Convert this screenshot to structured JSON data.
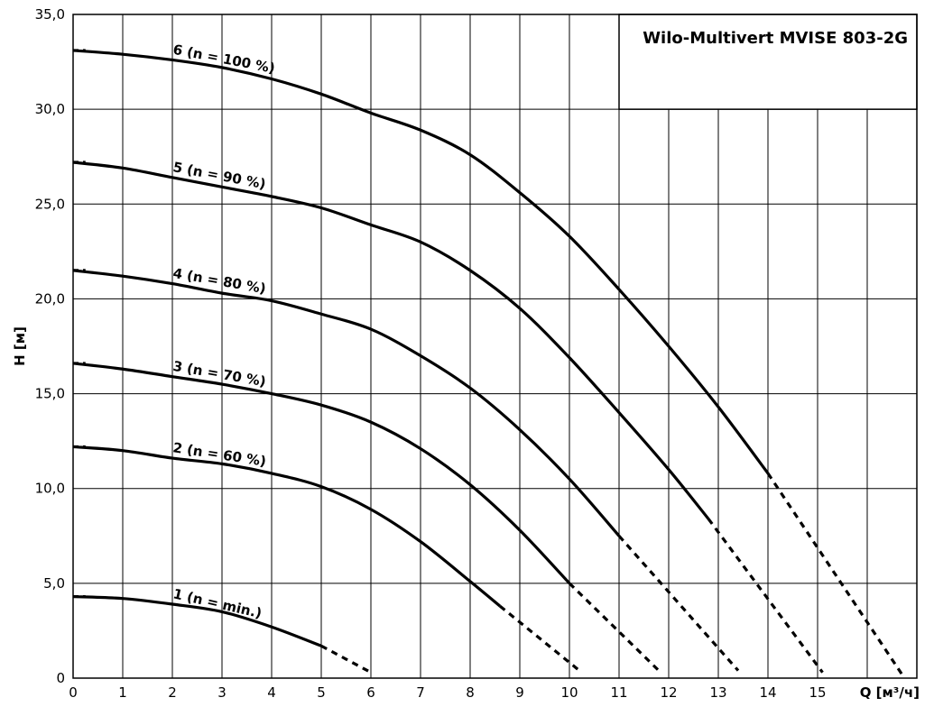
{
  "chart_data": {
    "type": "line",
    "title": "Wilo-Multivert MVISE 803-2G",
    "xlabel": "Q [м³/ч]",
    "ylabel": "H [м]",
    "xlim": [
      0,
      17
    ],
    "ylim": [
      0,
      35
    ],
    "x_ticks": [
      "0",
      "1",
      "2",
      "3",
      "4",
      "5",
      "6",
      "7",
      "8",
      "9",
      "10",
      "11",
      "12",
      "13",
      "14",
      "15"
    ],
    "y_ticks": [
      "0",
      "5,0",
      "10,0",
      "15,0",
      "20,0",
      "25,0",
      "30,0",
      "35,0"
    ],
    "grid": true,
    "series": [
      {
        "name": "1 (n = min.)",
        "solid": [
          [
            0,
            4.3
          ],
          [
            1,
            4.2
          ],
          [
            2,
            3.9
          ],
          [
            3,
            3.5
          ],
          [
            4,
            2.7
          ],
          [
            5,
            1.7
          ]
        ],
        "dashed": [
          [
            5,
            1.7
          ],
          [
            6,
            0.3
          ]
        ]
      },
      {
        "name": "2 (n = 60 %)",
        "solid": [
          [
            0,
            12.2
          ],
          [
            1,
            12.0
          ],
          [
            2,
            11.6
          ],
          [
            3,
            11.3
          ],
          [
            4,
            10.8
          ],
          [
            5,
            10.1
          ],
          [
            6,
            8.9
          ],
          [
            7,
            7.2
          ],
          [
            8,
            5.1
          ],
          [
            8.6,
            3.8
          ]
        ],
        "dashed": [
          [
            8.6,
            3.8
          ],
          [
            10.2,
            0.4
          ]
        ]
      },
      {
        "name": "3 (n = 70 %)",
        "solid": [
          [
            0,
            16.6
          ],
          [
            1,
            16.3
          ],
          [
            2,
            15.9
          ],
          [
            3,
            15.5
          ],
          [
            4,
            15.0
          ],
          [
            5,
            14.4
          ],
          [
            6,
            13.5
          ],
          [
            7,
            12.1
          ],
          [
            8,
            10.2
          ],
          [
            9,
            7.8
          ],
          [
            10,
            5.0
          ]
        ],
        "dashed": [
          [
            10,
            5.0
          ],
          [
            11.8,
            0.4
          ]
        ]
      },
      {
        "name": "4 (n = 80 %)",
        "solid": [
          [
            0,
            21.5
          ],
          [
            1,
            21.2
          ],
          [
            2,
            20.8
          ],
          [
            3,
            20.3
          ],
          [
            4,
            19.9
          ],
          [
            5,
            19.2
          ],
          [
            6,
            18.4
          ],
          [
            7,
            17.0
          ],
          [
            8,
            15.3
          ],
          [
            9,
            13.1
          ],
          [
            10,
            10.5
          ],
          [
            11,
            7.5
          ]
        ],
        "dashed": [
          [
            11,
            7.5
          ],
          [
            13.4,
            0.4
          ]
        ]
      },
      {
        "name": "5 (n = 90 %)",
        "solid": [
          [
            0,
            27.2
          ],
          [
            1,
            26.9
          ],
          [
            2,
            26.4
          ],
          [
            3,
            25.9
          ],
          [
            4,
            25.4
          ],
          [
            5,
            24.8
          ],
          [
            6,
            23.9
          ],
          [
            7,
            23.0
          ],
          [
            8,
            21.5
          ],
          [
            9,
            19.5
          ],
          [
            10,
            16.9
          ],
          [
            11,
            14.0
          ],
          [
            12,
            11.0
          ],
          [
            12.8,
            8.4
          ]
        ],
        "dashed": [
          [
            12.8,
            8.4
          ],
          [
            15.1,
            0.3
          ]
        ]
      },
      {
        "name": "6 (n = 100 %)",
        "solid": [
          [
            0,
            33.1
          ],
          [
            1,
            32.9
          ],
          [
            2,
            32.6
          ],
          [
            3,
            32.2
          ],
          [
            4,
            31.6
          ],
          [
            5,
            30.8
          ],
          [
            6,
            29.8
          ],
          [
            7,
            28.9
          ],
          [
            8,
            27.6
          ],
          [
            9,
            25.6
          ],
          [
            10,
            23.3
          ],
          [
            11,
            20.5
          ],
          [
            12,
            17.5
          ],
          [
            13,
            14.3
          ],
          [
            14,
            10.8
          ]
        ],
        "dashed": [
          [
            14,
            10.8
          ],
          [
            16.7,
            0.2
          ]
        ]
      }
    ]
  }
}
